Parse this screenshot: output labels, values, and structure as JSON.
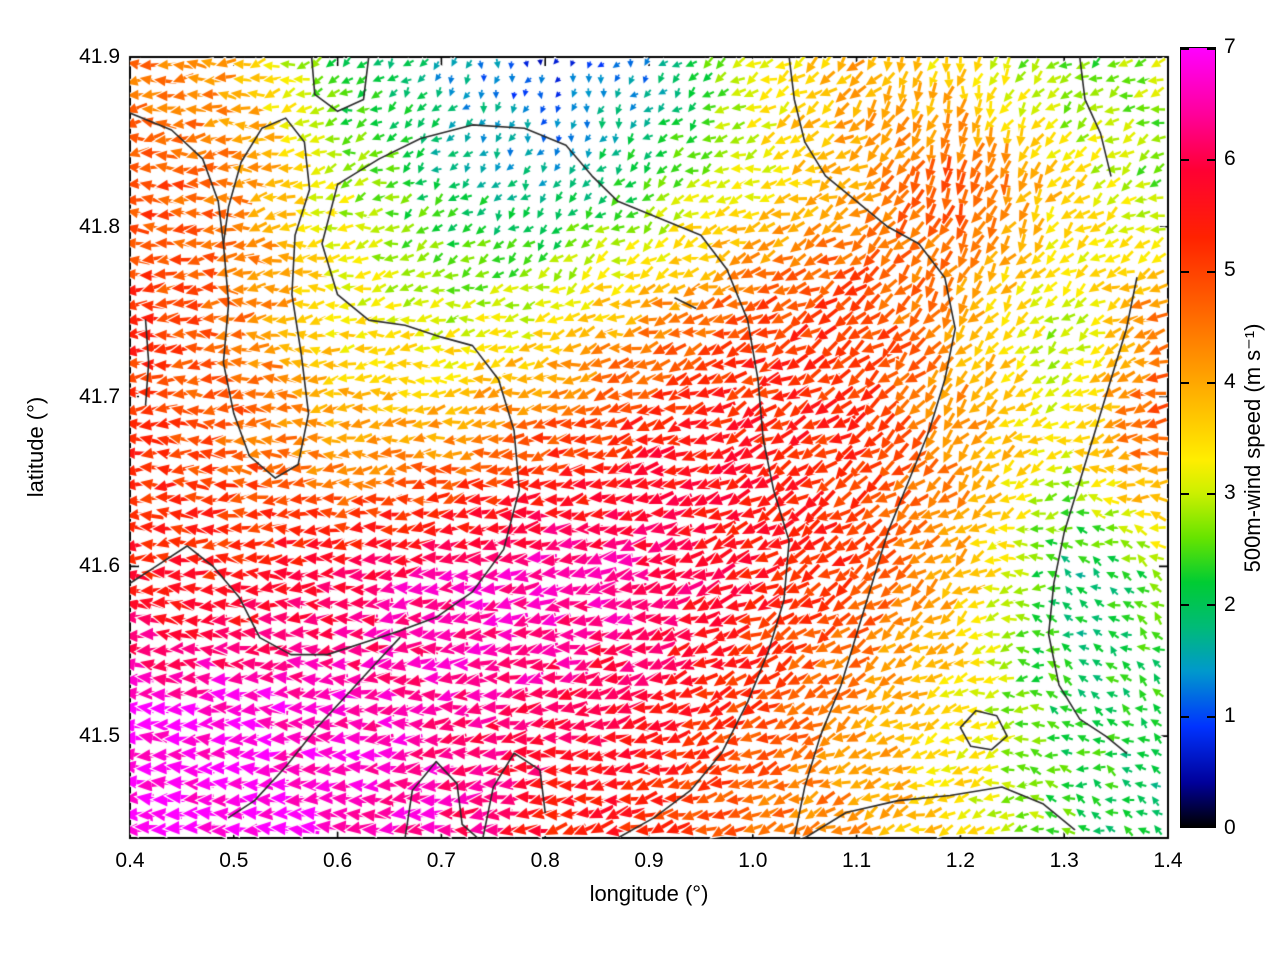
{
  "chart_data": {
    "type": "quiver",
    "title": "",
    "xlabel": "longitude (°)",
    "ylabel": "latitude (°)",
    "xlim": [
      0.4,
      1.4
    ],
    "ylim": [
      41.44,
      41.9
    ],
    "xticks": [
      0.4,
      0.5,
      0.6,
      0.7,
      0.8,
      0.9,
      1.0,
      1.1,
      1.2,
      1.3,
      1.4
    ],
    "yticks": [
      41.5,
      41.6,
      41.7,
      41.8,
      41.9
    ],
    "grid_on": false,
    "legend": "none",
    "colorbar": {
      "label": "500m-wind speed (m s⁻¹)",
      "min": 0,
      "max": 7,
      "ticks": [
        0,
        1,
        2,
        3,
        4,
        5,
        6,
        7
      ],
      "stops": [
        {
          "v": 0.0,
          "c": "#000000"
        },
        {
          "v": 0.4,
          "c": "#00009a"
        },
        {
          "v": 0.9,
          "c": "#0033ff"
        },
        {
          "v": 1.4,
          "c": "#0099cc"
        },
        {
          "v": 1.8,
          "c": "#00bb77"
        },
        {
          "v": 2.2,
          "c": "#00cc33"
        },
        {
          "v": 2.6,
          "c": "#66e400"
        },
        {
          "v": 3.0,
          "c": "#ccf000"
        },
        {
          "v": 3.3,
          "c": "#ffee00"
        },
        {
          "v": 3.8,
          "c": "#ffbb00"
        },
        {
          "v": 4.3,
          "c": "#ff8800"
        },
        {
          "v": 4.8,
          "c": "#ff5500"
        },
        {
          "v": 5.3,
          "c": "#ff2200"
        },
        {
          "v": 5.9,
          "c": "#ff0033"
        },
        {
          "v": 6.4,
          "c": "#ff0099"
        },
        {
          "v": 7.0,
          "c": "#ff00ff"
        }
      ]
    },
    "wind_field": {
      "units_speed": "m s⁻¹",
      "units_direction": "degrees CCW from east; 180 = arrow pointing west",
      "grid_lon": [
        0.4,
        0.5,
        0.6,
        0.7,
        0.8,
        0.9,
        1.0,
        1.1,
        1.2,
        1.3,
        1.4
      ],
      "grid_lat": [
        41.9,
        41.823,
        41.747,
        41.67,
        41.593,
        41.517,
        41.44
      ],
      "speed": [
        [
          4.5,
          4.0,
          2.2,
          1.5,
          0.8,
          1.2,
          3.2,
          4.0,
          3.3,
          2.3,
          3.0
        ],
        [
          5.0,
          4.5,
          3.0,
          2.0,
          1.6,
          2.4,
          3.2,
          4.2,
          5.0,
          3.6,
          2.4
        ],
        [
          5.2,
          4.6,
          3.4,
          3.0,
          3.2,
          4.2,
          5.0,
          5.2,
          4.0,
          2.8,
          4.8
        ],
        [
          5.3,
          4.8,
          4.0,
          4.2,
          5.0,
          5.5,
          5.5,
          5.2,
          4.2,
          3.2,
          5.0
        ],
        [
          5.5,
          5.4,
          6.0,
          6.5,
          6.6,
          6.3,
          5.6,
          5.0,
          4.0,
          1.8,
          2.5
        ],
        [
          6.8,
          6.8,
          6.6,
          6.4,
          6.2,
          5.8,
          5.0,
          4.2,
          3.2,
          2.2,
          2.2
        ],
        [
          7.0,
          7.0,
          6.8,
          6.5,
          5.5,
          5.2,
          4.5,
          4.2,
          3.5,
          2.5,
          1.8
        ]
      ],
      "direction_deg": [
        [
          185,
          185,
          205,
          240,
          260,
          235,
          205,
          230,
          260,
          220,
          195
        ],
        [
          182,
          183,
          192,
          220,
          245,
          215,
          198,
          212,
          255,
          225,
          200
        ],
        [
          180,
          182,
          185,
          190,
          196,
          196,
          202,
          215,
          235,
          215,
          196
        ],
        [
          180,
          180,
          182,
          188,
          192,
          196,
          205,
          215,
          225,
          200,
          190
        ],
        [
          178,
          180,
          183,
          188,
          190,
          195,
          205,
          215,
          220,
          155,
          140
        ],
        [
          178,
          179,
          182,
          186,
          190,
          196,
          205,
          212,
          205,
          160,
          142
        ],
        [
          177,
          178,
          181,
          185,
          190,
          195,
          200,
          205,
          200,
          170,
          152
        ]
      ]
    },
    "contours": [
      [
        [
          0.4,
          41.867
        ],
        [
          0.44,
          41.857
        ],
        [
          0.47,
          41.84
        ],
        [
          0.485,
          41.815
        ],
        [
          0.49,
          41.79
        ]
      ],
      [
        [
          0.49,
          41.79
        ],
        [
          0.495,
          41.755
        ],
        [
          0.49,
          41.72
        ],
        [
          0.5,
          41.69
        ],
        [
          0.515,
          41.665
        ],
        [
          0.54,
          41.652
        ],
        [
          0.562,
          41.66
        ],
        [
          0.572,
          41.69
        ],
        [
          0.565,
          41.725
        ],
        [
          0.556,
          41.76
        ],
        [
          0.559,
          41.795
        ],
        [
          0.573,
          41.822
        ],
        [
          0.568,
          41.85
        ],
        [
          0.55,
          41.864
        ],
        [
          0.527,
          41.858
        ],
        [
          0.507,
          41.838
        ],
        [
          0.495,
          41.812
        ],
        [
          0.49,
          41.79
        ]
      ],
      [
        [
          0.575,
          41.9
        ],
        [
          0.578,
          41.878
        ],
        [
          0.6,
          41.868
        ],
        [
          0.625,
          41.875
        ],
        [
          0.63,
          41.9
        ]
      ],
      [
        [
          0.6,
          41.825
        ],
        [
          0.64,
          41.84
        ],
        [
          0.68,
          41.852
        ],
        [
          0.73,
          41.86
        ],
        [
          0.78,
          41.858
        ],
        [
          0.82,
          41.848
        ],
        [
          0.845,
          41.83
        ],
        [
          0.87,
          41.815
        ],
        [
          0.91,
          41.805
        ],
        [
          0.95,
          41.795
        ],
        [
          0.975,
          41.775
        ],
        [
          0.995,
          41.745
        ],
        [
          1.005,
          41.71
        ],
        [
          1.01,
          41.675
        ],
        [
          1.02,
          41.645
        ],
        [
          1.035,
          41.615
        ],
        [
          1.03,
          41.58
        ],
        [
          1.015,
          41.55
        ],
        [
          0.995,
          41.52
        ],
        [
          0.97,
          41.49
        ],
        [
          0.94,
          41.468
        ],
        [
          0.905,
          41.452
        ],
        [
          0.87,
          41.44
        ]
      ],
      [
        [
          0.6,
          41.825
        ],
        [
          0.585,
          41.79
        ],
        [
          0.6,
          41.76
        ],
        [
          0.63,
          41.745
        ],
        [
          0.665,
          41.742
        ],
        [
          0.7,
          41.735
        ],
        [
          0.73,
          41.73
        ],
        [
          0.755,
          41.71
        ],
        [
          0.77,
          41.68
        ],
        [
          0.775,
          41.645
        ],
        [
          0.76,
          41.61
        ],
        [
          0.73,
          41.585
        ],
        [
          0.695,
          41.57
        ],
        [
          0.66,
          41.562
        ],
        [
          0.625,
          41.555
        ],
        [
          0.59,
          41.548
        ],
        [
          0.555,
          41.548
        ],
        [
          0.525,
          41.558
        ],
        [
          0.505,
          41.582
        ],
        [
          0.48,
          41.6
        ],
        [
          0.455,
          41.612
        ],
        [
          0.425,
          41.6
        ],
        [
          0.4,
          41.59
        ]
      ],
      [
        [
          0.495,
          41.452
        ],
        [
          0.52,
          41.462
        ],
        [
          0.55,
          41.482
        ],
        [
          0.58,
          41.505
        ],
        [
          0.61,
          41.525
        ],
        [
          0.64,
          41.545
        ],
        [
          0.66,
          41.558
        ]
      ],
      [
        [
          0.665,
          41.44
        ],
        [
          0.672,
          41.468
        ],
        [
          0.695,
          41.485
        ],
        [
          0.715,
          41.472
        ],
        [
          0.72,
          41.448
        ],
        [
          0.735,
          41.44
        ]
      ],
      [
        [
          0.74,
          41.44
        ],
        [
          0.75,
          41.47
        ],
        [
          0.77,
          41.49
        ],
        [
          0.795,
          41.48
        ],
        [
          0.8,
          41.455
        ]
      ],
      [
        [
          1.04,
          41.44
        ],
        [
          1.05,
          41.47
        ],
        [
          1.065,
          41.5
        ],
        [
          1.085,
          41.53
        ],
        [
          1.1,
          41.56
        ],
        [
          1.115,
          41.59
        ],
        [
          1.13,
          41.62
        ],
        [
          1.15,
          41.65
        ],
        [
          1.17,
          41.68
        ],
        [
          1.185,
          41.71
        ],
        [
          1.195,
          41.74
        ],
        [
          1.185,
          41.77
        ],
        [
          1.16,
          41.79
        ],
        [
          1.13,
          41.8
        ],
        [
          1.1,
          41.815
        ],
        [
          1.07,
          41.83
        ],
        [
          1.05,
          41.85
        ],
        [
          1.04,
          41.875
        ],
        [
          1.035,
          41.9
        ]
      ],
      [
        [
          1.315,
          41.9
        ],
        [
          1.32,
          41.875
        ],
        [
          1.335,
          41.855
        ],
        [
          1.345,
          41.83
        ]
      ],
      [
        [
          1.37,
          41.77
        ],
        [
          1.36,
          41.74
        ],
        [
          1.345,
          41.71
        ],
        [
          1.33,
          41.68
        ],
        [
          1.315,
          41.65
        ],
        [
          1.3,
          41.62
        ],
        [
          1.29,
          41.59
        ],
        [
          1.285,
          41.56
        ],
        [
          1.295,
          41.53
        ],
        [
          1.315,
          41.51
        ],
        [
          1.34,
          41.5
        ],
        [
          1.36,
          41.49
        ]
      ],
      [
        [
          1.2,
          41.505
        ],
        [
          1.215,
          41.515
        ],
        [
          1.235,
          41.512
        ],
        [
          1.245,
          41.5
        ],
        [
          1.23,
          41.492
        ],
        [
          1.21,
          41.494
        ],
        [
          1.2,
          41.505
        ]
      ],
      [
        [
          1.05,
          41.44
        ],
        [
          1.09,
          41.455
        ],
        [
          1.14,
          41.462
        ],
        [
          1.19,
          41.465
        ],
        [
          1.24,
          41.47
        ],
        [
          1.28,
          41.46
        ],
        [
          1.31,
          41.445
        ]
      ],
      [
        [
          0.415,
          41.745
        ],
        [
          0.418,
          41.72
        ],
        [
          0.415,
          41.695
        ]
      ],
      [
        [
          0.925,
          41.758
        ],
        [
          0.945,
          41.752
        ]
      ]
    ]
  }
}
